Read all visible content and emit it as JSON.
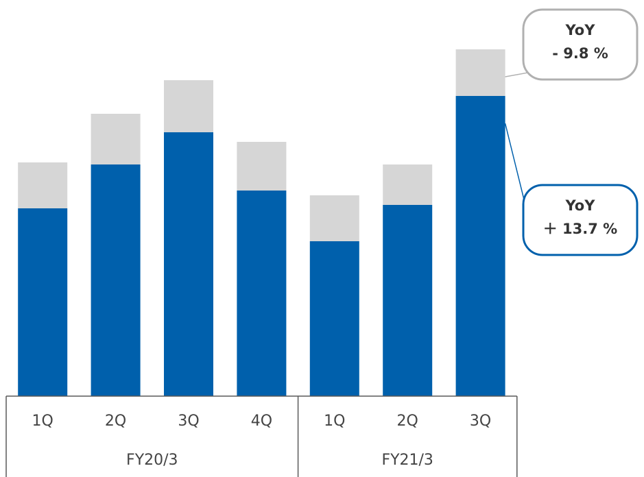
{
  "chart_data": {
    "type": "bar",
    "stacked": true,
    "groups": [
      {
        "label": "FY20/3",
        "categories": [
          "1Q",
          "2Q",
          "3Q",
          "4Q"
        ]
      },
      {
        "label": "FY21/3",
        "categories": [
          "1Q",
          "2Q",
          "3Q"
        ]
      }
    ],
    "categories": [
      "1Q",
      "2Q",
      "3Q",
      "4Q",
      "1Q",
      "2Q",
      "3Q"
    ],
    "series": [
      {
        "color": "#0060ac",
        "values": [
          274,
          338,
          385,
          300,
          226,
          279,
          438
        ]
      },
      {
        "color": "#d6d6d6",
        "values": [
          67,
          74,
          76,
          71,
          67,
          59,
          68
        ]
      }
    ],
    "ylim": [
      0,
      510
    ],
    "y_axis_visible": false,
    "grid": false,
    "annotations": [
      {
        "line1": "YoY",
        "line2": "- 9.8 %",
        "target_index": 6,
        "target_series": 1,
        "border_color": "#b0b0b0"
      },
      {
        "line1": "YoY",
        "line2": "＋ 13.7 %",
        "target_index": 6,
        "target_series": 0,
        "border_color": "#0060ac"
      }
    ]
  }
}
